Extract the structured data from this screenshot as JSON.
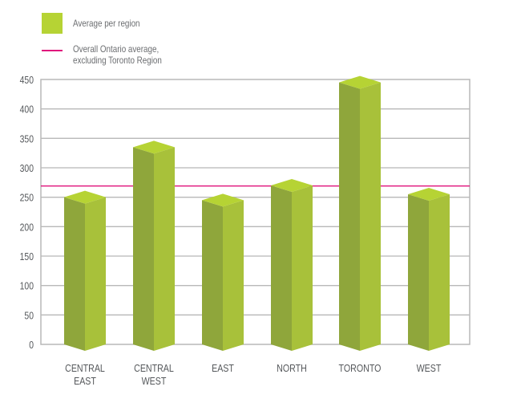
{
  "legend": {
    "bar_label": "Average per region",
    "line_label_1": "Overall Ontario average,",
    "line_label_2": "excluding Toronto Region",
    "bar_color": "#b6d334",
    "line_color": "#e0147c"
  },
  "colors": {
    "bar_left": "#8fa63b",
    "bar_right": "#a8c13a",
    "bar_top": "#b6d334",
    "grid": "#b8b8b8",
    "average_line": "#e0147c"
  },
  "chart_data": {
    "type": "bar",
    "title": "",
    "xlabel": "",
    "ylabel": "",
    "categories": [
      [
        "CENTRAL",
        "EAST"
      ],
      [
        "CENTRAL",
        "WEST"
      ],
      [
        "EAST"
      ],
      [
        "NORTH"
      ],
      [
        "TORONTO"
      ],
      [
        "WEST"
      ]
    ],
    "category_labels": [
      "CENTRAL EAST",
      "CENTRAL WEST",
      "EAST",
      "NORTH",
      "TORONTO",
      "WEST"
    ],
    "series": [
      {
        "name": "Average per region",
        "values": [
          250,
          335,
          245,
          270,
          445,
          255
        ]
      }
    ],
    "reference_lines": [
      {
        "name": "Overall Ontario average, excluding Toronto Region",
        "value": 269
      }
    ],
    "ylim": [
      0,
      450
    ],
    "yticks": [
      0,
      50,
      100,
      150,
      200,
      250,
      300,
      350,
      400,
      450
    ],
    "grid": true,
    "legend_position": "top-left"
  }
}
